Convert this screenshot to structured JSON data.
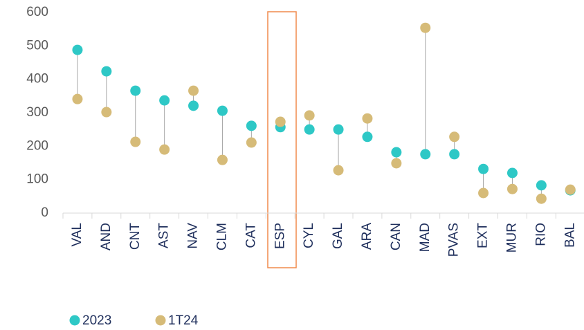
{
  "chart_data": {
    "type": "dumbbell",
    "categories": [
      "VAL",
      "AND",
      "CNT",
      "AST",
      "NAV",
      "CLM",
      "CAT",
      "ESP",
      "CYL",
      "GAL",
      "ARA",
      "CAN",
      "MAD",
      "PVAS",
      "EXT",
      "MUR",
      "RIO",
      "BAL"
    ],
    "series": [
      {
        "name": "2023",
        "color": "#2ec8c6",
        "values": [
          488,
          424,
          366,
          337,
          321,
          306,
          261,
          257,
          250,
          250,
          228,
          182,
          176,
          176,
          132,
          120,
          83,
          68
        ]
      },
      {
        "name": "1T24",
        "color": "#d6bb78",
        "values": [
          341,
          302,
          213,
          190,
          366,
          159,
          211,
          273,
          292,
          128,
          283,
          149,
          554,
          228,
          60,
          72,
          43,
          70
        ]
      }
    ],
    "ylim": [
      0,
      600
    ],
    "yticks": [
      0,
      100,
      200,
      300,
      400,
      500,
      600
    ]
  }
}
